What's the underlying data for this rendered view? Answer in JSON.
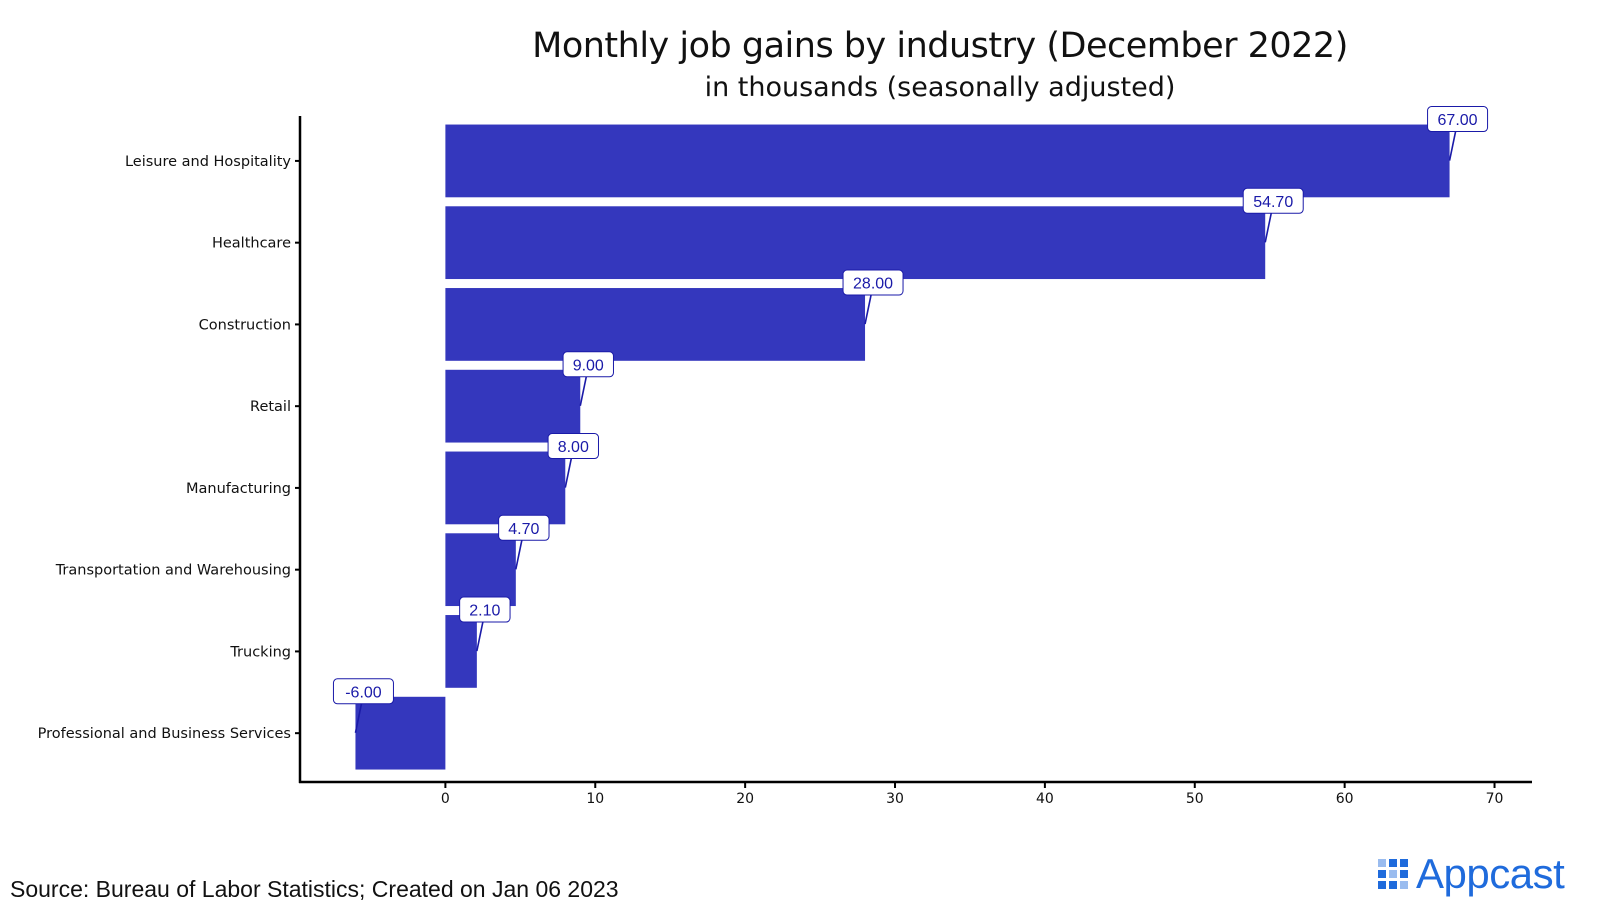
{
  "chart_data": {
    "type": "bar",
    "orientation": "horizontal",
    "title": "Monthly job gains by industry (December 2022)",
    "subtitle": "in thousands (seasonally adjusted)",
    "categories": [
      "Leisure and Hospitality",
      "Healthcare",
      "Construction",
      "Retail",
      "Manufacturing",
      "Transportation and Warehousing",
      "Trucking",
      "Professional and Business Services"
    ],
    "values": [
      67.0,
      54.7,
      28.0,
      9.0,
      8.0,
      4.7,
      2.1,
      -6.0
    ],
    "value_labels": [
      "67.00",
      "54.70",
      "28.00",
      "9.00",
      "8.00",
      "4.70",
      "2.10",
      "-6.00"
    ],
    "xlim": [
      -9.7,
      72.5
    ],
    "xticks": [
      0,
      10,
      20,
      30,
      40,
      50,
      60,
      70
    ],
    "xtick_labels": [
      "0",
      "10",
      "20",
      "30",
      "40",
      "50",
      "60",
      "70"
    ],
    "xlabel": "",
    "ylabel": "",
    "grid": false,
    "legend": "none",
    "bar_color": "#3437bd",
    "label_text_color": "#1a1aa8"
  },
  "footer": {
    "source": "Source: Bureau of Labor Statistics; Created on Jan 06 2023",
    "logo_text": "Appcast",
    "logo_color": "#1f6bdc"
  }
}
